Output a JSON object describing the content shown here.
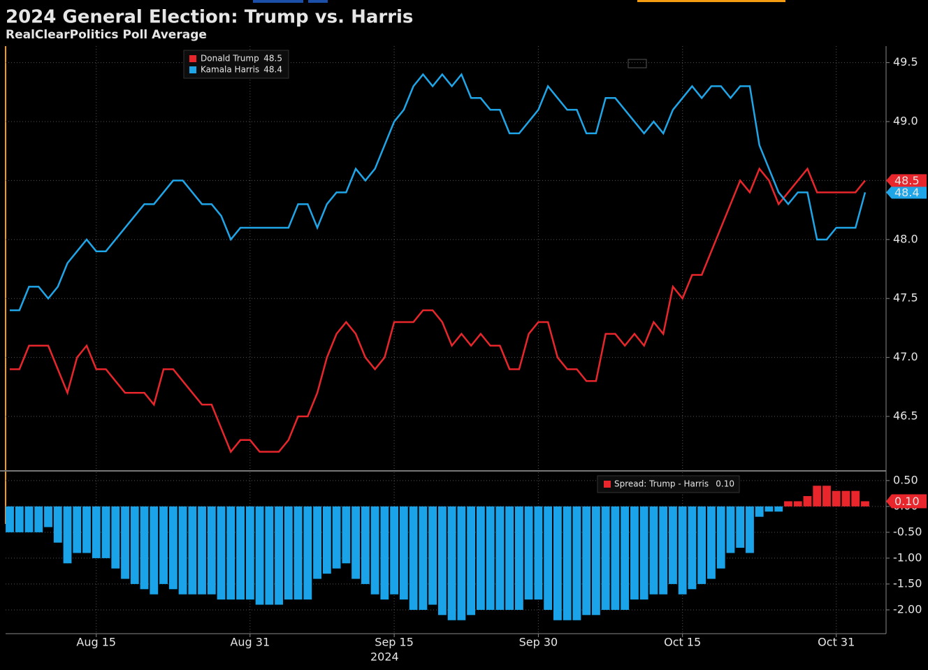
{
  "title": "2024 General Election: Trump vs. Harris",
  "subtitle": "RealClearPolitics Poll Average",
  "chart_data": [
    {
      "type": "line",
      "ylim": [
        46.05,
        49.64
      ],
      "yticks": [
        49.5,
        {
          "value": 49,
          "label": "49.0"
        },
        48.5,
        {
          "value": 48,
          "label": "48.0"
        },
        47.5,
        {
          "value": 47,
          "label": "47.0"
        },
        46.5
      ],
      "grid": true,
      "series": [
        {
          "name": "Donald Trump",
          "color": "#e8262b",
          "values": [
            46.9,
            46.9,
            47.1,
            47.1,
            47.1,
            46.9,
            46.7,
            47.0,
            47.1,
            46.9,
            46.9,
            46.8,
            46.7,
            46.7,
            46.7,
            46.6,
            46.9,
            46.9,
            46.8,
            46.7,
            46.6,
            46.6,
            46.4,
            46.2,
            46.3,
            46.3,
            46.2,
            46.2,
            46.2,
            46.3,
            46.5,
            46.5,
            46.7,
            47.0,
            47.2,
            47.3,
            47.2,
            47.0,
            46.9,
            47.0,
            47.3,
            47.3,
            47.3,
            47.4,
            47.4,
            47.3,
            47.1,
            47.2,
            47.1,
            47.2,
            47.1,
            47.1,
            46.9,
            46.9,
            47.2,
            47.3,
            47.3,
            47.0,
            46.9,
            46.9,
            46.8,
            46.8,
            47.2,
            47.2,
            47.1,
            47.2,
            47.1,
            47.3,
            47.2,
            47.6,
            47.5,
            47.7,
            47.7,
            47.9,
            48.1,
            48.3,
            48.5,
            48.4,
            48.6,
            48.5,
            48.3,
            48.4,
            48.5,
            48.6,
            48.4,
            48.4,
            48.4,
            48.4,
            48.4,
            48.5
          ]
        },
        {
          "name": "Kamala Harris",
          "color": "#1fa6e8",
          "values": [
            47.4,
            47.4,
            47.6,
            47.6,
            47.5,
            47.6,
            47.8,
            47.9,
            48.0,
            47.9,
            47.9,
            48.0,
            48.1,
            48.2,
            48.3,
            48.3,
            48.4,
            48.5,
            48.5,
            48.4,
            48.3,
            48.3,
            48.2,
            48.0,
            48.1,
            48.1,
            48.1,
            48.1,
            48.1,
            48.1,
            48.3,
            48.3,
            48.1,
            48.3,
            48.4,
            48.4,
            48.6,
            48.5,
            48.6,
            48.8,
            49.0,
            49.1,
            49.3,
            49.4,
            49.3,
            49.4,
            49.3,
            49.4,
            49.2,
            49.2,
            49.1,
            49.1,
            48.9,
            48.9,
            49.0,
            49.1,
            49.3,
            49.2,
            49.1,
            49.1,
            48.9,
            48.9,
            49.2,
            49.2,
            49.1,
            49.0,
            48.9,
            49.0,
            48.9,
            49.1,
            49.2,
            49.3,
            49.2,
            49.3,
            49.3,
            49.2,
            49.3,
            49.3,
            48.8,
            48.6,
            48.4,
            48.3,
            48.4,
            48.4,
            48.0,
            48.0,
            48.1,
            48.1,
            48.1,
            48.4
          ]
        }
      ]
    },
    {
      "type": "bar",
      "categories": [
        null,
        null,
        null,
        null,
        null,
        null,
        null,
        null,
        null,
        "Aug 15",
        null,
        null,
        null,
        null,
        null,
        null,
        null,
        null,
        null,
        null,
        null,
        null,
        null,
        null,
        null,
        "Aug 31",
        null,
        null,
        null,
        null,
        null,
        null,
        null,
        null,
        null,
        null,
        null,
        null,
        null,
        null,
        "Sep 15",
        null,
        null,
        null,
        null,
        null,
        null,
        null,
        null,
        null,
        null,
        null,
        null,
        null,
        null,
        "Sep 30",
        null,
        null,
        null,
        null,
        null,
        null,
        null,
        null,
        null,
        null,
        null,
        null,
        null,
        null,
        "Oct 15",
        null,
        null,
        null,
        null,
        null,
        null,
        null,
        null,
        null,
        null,
        null,
        null,
        null,
        null,
        null,
        "Oct 31",
        null,
        null,
        null
      ],
      "xlabel": "2024",
      "ylim": [
        -2.46,
        0.66
      ],
      "yticks": [
        {
          "value": 0.5,
          "label": "0.50"
        },
        {
          "value": 0,
          "label": "0.00"
        },
        {
          "value": -0.5,
          "label": "-0.50"
        },
        {
          "value": -1,
          "label": "-1.00"
        },
        {
          "value": -1.5,
          "label": "-1.50"
        },
        {
          "value": -2,
          "label": "-2.00"
        }
      ],
      "grid": true,
      "series": [
        {
          "name": "Spread: Trump - Harris",
          "color": "#e8262b",
          "negative_color": "#1aa3e8",
          "values": [
            -0.5,
            -0.5,
            -0.5,
            -0.5,
            -0.4,
            -0.7,
            -1.1,
            -0.9,
            -0.9,
            -1.0,
            -1.0,
            -1.2,
            -1.4,
            -1.5,
            -1.6,
            -1.7,
            -1.5,
            -1.6,
            -1.7,
            -1.7,
            -1.7,
            -1.7,
            -1.8,
            -1.8,
            -1.8,
            -1.8,
            -1.9,
            -1.9,
            -1.9,
            -1.8,
            -1.8,
            -1.8,
            -1.4,
            -1.3,
            -1.2,
            -1.1,
            -1.4,
            -1.5,
            -1.7,
            -1.8,
            -1.7,
            -1.8,
            -2.0,
            -2.0,
            -1.9,
            -2.1,
            -2.2,
            -2.2,
            -2.1,
            -2.0,
            -2.0,
            -2.0,
            -2.0,
            -2.0,
            -1.8,
            -1.8,
            -2.0,
            -2.2,
            -2.2,
            -2.2,
            -2.1,
            -2.1,
            -2.0,
            -2.0,
            -2.0,
            -1.8,
            -1.8,
            -1.7,
            -1.7,
            -1.5,
            -1.7,
            -1.6,
            -1.5,
            -1.4,
            -1.2,
            -0.9,
            -0.8,
            -0.9,
            -0.2,
            -0.1,
            -0.1,
            0.1,
            0.1,
            0.2,
            0.4,
            0.4,
            0.3,
            0.3,
            0.3,
            0.1
          ],
          "value_labels": [
            null,
            null,
            null,
            null,
            null,
            null,
            null,
            null,
            null,
            null,
            null,
            null,
            null,
            null,
            null,
            null,
            null,
            null,
            null,
            null,
            null,
            null,
            null,
            null,
            null,
            null,
            null,
            null,
            null,
            null,
            null,
            null,
            null,
            null,
            null,
            null,
            null,
            null,
            null,
            null,
            null,
            null,
            null,
            null,
            null,
            null,
            null,
            null,
            null,
            null,
            null,
            null,
            null,
            null,
            null,
            null,
            null,
            null,
            null,
            null,
            null,
            null,
            null,
            null,
            null,
            null,
            null,
            null,
            null,
            null,
            null,
            null,
            null,
            null,
            null,
            null,
            null,
            null,
            null,
            null,
            null,
            null,
            null,
            null,
            null,
            null,
            null,
            null,
            null,
            "0.10"
          ]
        }
      ]
    }
  ]
}
